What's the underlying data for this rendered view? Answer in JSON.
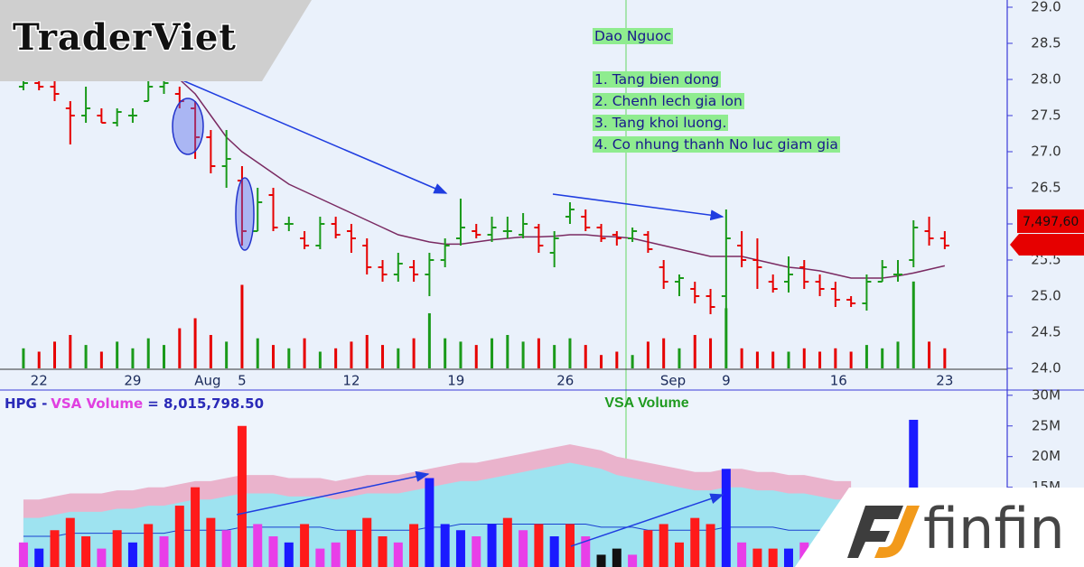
{
  "logo": "TraderViet",
  "brand": "finfin",
  "chart_data": [
    {
      "type": "ohlc",
      "annotations": [
        "Dao Nguoc",
        "1. Tang bien dong",
        "2. Chenh lech gia lon",
        "3. Tang khoi luong.",
        "4. Co nhung thanh No luc giam gia"
      ],
      "cursor_label": "7,497,60",
      "last_value": 25.7,
      "x": [
        0,
        1,
        2,
        3,
        4,
        5,
        6,
        7,
        8,
        9,
        10,
        11,
        12,
        13,
        14,
        15,
        16,
        17,
        18,
        19,
        20,
        21,
        22,
        23,
        24,
        25,
        26,
        27,
        28,
        29,
        30,
        31,
        32,
        33,
        34,
        35,
        36,
        37,
        38,
        39,
        40,
        41,
        42,
        43,
        44,
        45,
        46,
        47,
        48,
        49,
        50,
        51,
        52,
        53,
        54,
        55,
        56,
        57,
        58,
        59
      ],
      "open": [
        27.9,
        27.95,
        27.9,
        27.6,
        27.5,
        27.5,
        27.4,
        27.5,
        27.7,
        27.9,
        27.8,
        27.6,
        27.2,
        26.8,
        26.6,
        25.9,
        26.4,
        26.0,
        25.8,
        25.7,
        26.0,
        25.9,
        25.7,
        25.4,
        25.3,
        25.4,
        25.3,
        25.5,
        25.8,
        25.9,
        25.85,
        25.9,
        25.85,
        25.95,
        25.6,
        26.1,
        26.1,
        25.95,
        25.85,
        25.8,
        25.85,
        25.4,
        25.2,
        25.1,
        25.0,
        25.0,
        25.7,
        25.5,
        25.2,
        25.2,
        25.4,
        25.2,
        25.1,
        24.95,
        24.9,
        25.2,
        25.3,
        25.5,
        25.9,
        25.8
      ],
      "high": [
        28.0,
        28.0,
        28.0,
        27.7,
        27.9,
        27.6,
        27.6,
        27.6,
        28.0,
        28.0,
        27.9,
        27.7,
        27.3,
        27.3,
        26.8,
        26.5,
        26.5,
        26.1,
        25.9,
        26.1,
        26.1,
        26.0,
        25.8,
        25.5,
        25.6,
        25.5,
        25.6,
        25.8,
        26.35,
        26.0,
        26.1,
        26.1,
        26.15,
        26.0,
        25.9,
        26.3,
        26.2,
        26.0,
        25.9,
        25.95,
        25.9,
        25.5,
        25.3,
        25.2,
        25.1,
        26.2,
        25.9,
        25.8,
        25.3,
        25.55,
        25.5,
        25.3,
        25.2,
        25.0,
        25.3,
        25.5,
        25.5,
        26.05,
        26.1,
        25.9
      ],
      "low": [
        27.85,
        27.85,
        27.7,
        27.1,
        27.4,
        27.4,
        27.35,
        27.4,
        27.7,
        27.8,
        27.6,
        26.9,
        26.7,
        26.5,
        25.7,
        25.9,
        25.9,
        25.9,
        25.65,
        25.65,
        25.8,
        25.6,
        25.3,
        25.2,
        25.2,
        25.2,
        25.0,
        25.4,
        25.7,
        25.8,
        25.75,
        25.8,
        25.8,
        25.6,
        25.4,
        26.0,
        25.9,
        25.75,
        25.7,
        25.75,
        25.6,
        25.1,
        25.0,
        24.9,
        24.75,
        24.7,
        25.4,
        25.1,
        25.05,
        25.05,
        25.1,
        25.0,
        24.85,
        24.85,
        24.8,
        25.2,
        25.2,
        25.4,
        25.7,
        25.65
      ],
      "close": [
        27.95,
        27.9,
        27.8,
        27.5,
        27.6,
        27.4,
        27.55,
        27.5,
        27.9,
        27.95,
        27.7,
        27.2,
        26.8,
        26.9,
        25.9,
        26.3,
        25.95,
        26.0,
        25.7,
        26.0,
        25.85,
        25.8,
        25.4,
        25.3,
        25.45,
        25.3,
        25.5,
        25.7,
        25.95,
        25.85,
        25.95,
        25.9,
        26.0,
        25.7,
        25.8,
        26.2,
        25.95,
        25.8,
        25.8,
        25.9,
        25.65,
        25.2,
        25.25,
        25.0,
        24.85,
        25.8,
        25.5,
        25.4,
        25.1,
        25.3,
        25.2,
        25.1,
        24.95,
        24.9,
        25.2,
        25.4,
        25.3,
        25.95,
        25.8,
        25.7
      ],
      "up_color": "#1a9a1a",
      "down_color": "#e60000",
      "ma": {
        "color": "#7a2a62",
        "values": [
          null,
          null,
          null,
          null,
          null,
          null,
          null,
          null,
          null,
          28.05,
          28.0,
          27.8,
          27.5,
          27.2,
          27.0,
          26.85,
          26.7,
          26.55,
          26.45,
          26.35,
          26.25,
          26.15,
          26.05,
          25.95,
          25.85,
          25.8,
          25.75,
          25.72,
          25.72,
          25.75,
          25.78,
          25.8,
          25.82,
          25.82,
          25.83,
          25.85,
          25.85,
          25.83,
          25.82,
          25.8,
          25.75,
          25.7,
          25.65,
          25.6,
          25.55,
          25.55,
          25.55,
          25.5,
          25.45,
          25.4,
          25.38,
          25.35,
          25.3,
          25.25,
          25.25,
          25.25,
          25.28,
          25.32,
          25.37,
          25.42
        ]
      },
      "xlim": [
        -1.5,
        63
      ],
      "ylim": [
        24.0,
        29.1
      ],
      "xticks": [
        {
          "value": 1,
          "label": "22"
        },
        {
          "value": 7,
          "label": "29"
        },
        {
          "value": 11.8,
          "label": "Aug"
        },
        {
          "value": 14,
          "label": "5"
        },
        {
          "value": 21,
          "label": "12"
        },
        {
          "value": 27.7,
          "label": "19"
        },
        {
          "value": 34.7,
          "label": "26"
        },
        {
          "value": 41.6,
          "label": "Sep"
        },
        {
          "value": 45,
          "label": "9"
        },
        {
          "value": 52.2,
          "label": "16"
        },
        {
          "value": 59,
          "label": "23"
        }
      ],
      "yticks": [
        {
          "value": 24,
          "label": "24.0"
        },
        {
          "value": 24.5,
          "label": "24.5"
        },
        {
          "value": 25,
          "label": "25.0"
        },
        {
          "value": 25.5,
          "label": "25.5"
        },
        {
          "value": 26,
          "label": "26.0"
        },
        {
          "value": 26.5,
          "label": "26.5"
        },
        {
          "value": 27,
          "label": "27.0"
        },
        {
          "value": 27.5,
          "label": "27.5"
        },
        {
          "value": 28,
          "label": "28.0"
        },
        {
          "value": 28.5,
          "label": "28.5"
        },
        {
          "value": 29,
          "label": "29.0"
        }
      ]
    },
    {
      "type": "bar",
      "title": "VSA Volume",
      "symbol_label": "HPG -",
      "indicator": "VSA Volume",
      "value_text": "= 8,015,798.50",
      "x": [
        0,
        1,
        2,
        3,
        4,
        5,
        6,
        7,
        8,
        9,
        10,
        11,
        12,
        13,
        14,
        15,
        16,
        17,
        18,
        19,
        20,
        21,
        22,
        23,
        24,
        25,
        26,
        27,
        28,
        29,
        30,
        31,
        32,
        33,
        34,
        35,
        36,
        37,
        38,
        39,
        40,
        41,
        42,
        43,
        44,
        45,
        46,
        47,
        48,
        49,
        50,
        51,
        52,
        53,
        54,
        55,
        56,
        57,
        58,
        59
      ],
      "values": [
        6,
        5,
        8,
        10,
        7,
        5,
        8,
        6,
        9,
        7,
        12,
        15,
        10,
        8,
        25,
        9,
        7,
        6,
        9,
        5,
        6,
        8,
        10,
        7,
        6,
        9,
        16.5,
        9,
        8,
        7,
        9,
        10,
        8,
        9,
        7,
        9,
        7,
        4,
        5,
        4,
        8,
        9,
        6,
        10,
        9,
        18,
        6,
        5,
        5,
        5,
        6,
        5,
        6,
        5,
        7,
        6,
        8,
        26,
        8,
        6
      ],
      "colors": [
        "#e83ee8",
        "#1a1aff",
        "#ff1a1a",
        "#ff1a1a",
        "#ff1a1a",
        "#e83ee8",
        "#ff1a1a",
        "#1a1aff",
        "#ff1a1a",
        "#e83ee8",
        "#ff1a1a",
        "#ff1a1a",
        "#ff1a1a",
        "#e83ee8",
        "#ff1a1a",
        "#e83ee8",
        "#e83ee8",
        "#1a1aff",
        "#ff1a1a",
        "#e83ee8",
        "#e83ee8",
        "#ff1a1a",
        "#ff1a1a",
        "#ff1a1a",
        "#e83ee8",
        "#ff1a1a",
        "#1a1aff",
        "#1a1aff",
        "#1a1aff",
        "#e83ee8",
        "#1a1aff",
        "#ff1a1a",
        "#e83ee8",
        "#ff1a1a",
        "#1a1aff",
        "#ff1a1a",
        "#e83ee8",
        "#111111",
        "#111111",
        "#e83ee8",
        "#ff1a1a",
        "#ff1a1a",
        "#ff1a1a",
        "#ff1a1a",
        "#ff1a1a",
        "#1a1aff",
        "#e83ee8",
        "#ff1a1a",
        "#ff1a1a",
        "#1a1aff",
        "#e83ee8",
        "#ff1a1a",
        "#ff1a1a",
        "#ff1a1a",
        "#e83ee8",
        "#ff1a1a",
        "#ff1a1a",
        "#1a1aff",
        "#ff1a1a",
        "#ff1a1a"
      ],
      "bands": [
        {
          "color": "#eab3cc",
          "values": [
            13,
            13,
            13.5,
            14,
            14,
            14,
            14.5,
            14.5,
            15,
            15,
            15.5,
            16,
            16,
            16.5,
            17,
            17,
            17,
            16.5,
            16.5,
            16.5,
            16,
            16.5,
            17,
            17,
            17,
            17.5,
            18,
            18.5,
            19,
            19,
            19.5,
            20,
            20.5,
            21,
            21.5,
            22,
            21.5,
            21,
            20,
            19.5,
            19,
            18.5,
            18,
            17.5,
            17.5,
            18,
            18,
            17.5,
            17.5,
            17,
            17,
            16.5,
            16,
            16,
            null,
            null,
            null,
            null,
            null,
            null
          ]
        },
        {
          "color": "#9ee3f0",
          "values": [
            10,
            10,
            10.5,
            11,
            11,
            11,
            11.5,
            11.5,
            12,
            12,
            12.5,
            13,
            13,
            13.5,
            14,
            14,
            14,
            13.5,
            13.5,
            13.5,
            13,
            13.5,
            14,
            14,
            14,
            14.5,
            15,
            15.5,
            16,
            16,
            16.5,
            17,
            17.5,
            18,
            18.5,
            19,
            18.5,
            18,
            17,
            16.5,
            16,
            15.5,
            15,
            14.5,
            14.5,
            15,
            15,
            14.5,
            14.5,
            14,
            14,
            13.5,
            13,
            13,
            null,
            null,
            null,
            null,
            null,
            null
          ]
        }
      ],
      "line": {
        "color": "#1a40d0",
        "values": [
          7,
          7,
          7,
          7.5,
          7.5,
          7.5,
          7.5,
          7.5,
          7.5,
          7.5,
          8,
          8,
          8,
          8,
          8.5,
          8.5,
          8.5,
          8.5,
          8.5,
          8.5,
          8,
          8,
          8,
          8,
          8,
          8,
          8.5,
          8.5,
          9,
          9,
          9,
          9,
          9,
          9,
          9,
          9,
          9,
          8.5,
          8.5,
          8.5,
          8,
          8,
          8,
          8,
          8,
          8.5,
          8.5,
          8.5,
          8.5,
          8,
          8,
          8,
          7.5,
          7.5,
          null,
          null,
          null,
          null,
          null,
          null
        ]
      },
      "xlim": [
        -1.5,
        63
      ],
      "ylim": [
        2,
        31
      ],
      "yticks": [
        {
          "value": 15,
          "label": "15M"
        },
        {
          "value": 20,
          "label": "20M"
        },
        {
          "value": 25,
          "label": "25M"
        },
        {
          "value": 30,
          "label": "30M"
        }
      ]
    }
  ]
}
